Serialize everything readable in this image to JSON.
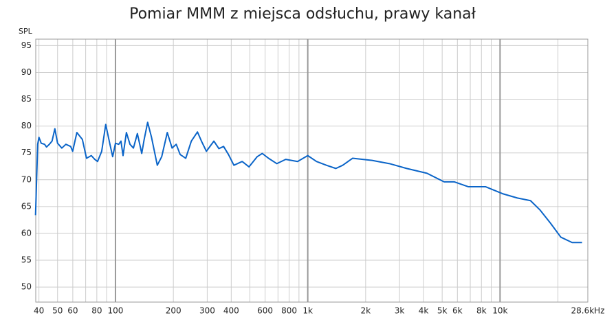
{
  "chart_data": {
    "type": "line",
    "title": "Pomiar MMM z miejsca odsłuchu, prawy kanał",
    "y_label": "SPL",
    "xscale": "log",
    "grid": true,
    "color": "#0a64c8",
    "xlim": [
      38.5,
      28600
    ],
    "ylim": [
      47.2,
      96.2
    ],
    "yticks": [
      50,
      55,
      60,
      65,
      70,
      75,
      80,
      85,
      90,
      95
    ],
    "xticks": [
      40,
      50,
      60,
      80,
      100,
      200,
      300,
      400,
      600,
      800,
      {
        "value": 1000,
        "label": "1k"
      },
      {
        "value": 2000,
        "label": "2k"
      },
      {
        "value": 3000,
        "label": "3k"
      },
      {
        "value": 4000,
        "label": "4k"
      },
      {
        "value": 5000,
        "label": "5k"
      },
      {
        "value": 6000,
        "label": "6k"
      },
      {
        "value": 8000,
        "label": "8k"
      },
      {
        "value": 10000,
        "label": "10k"
      },
      {
        "value": 28600,
        "label": "28.6kHz"
      }
    ],
    "xgrid_minor": [
      70,
      90,
      500,
      700,
      900,
      7000,
      9000,
      20000
    ],
    "x": [
      38.4,
      39.4,
      40,
      41.1,
      42.8,
      43.8,
      45.3,
      46.8,
      48.4,
      50,
      52.6,
      55.2,
      58.5,
      59.9,
      63,
      67.3,
      70.7,
      74.9,
      78,
      80.7,
      84.8,
      89,
      93.6,
      96.7,
      100,
      104,
      106.8,
      109.5,
      114,
      119,
      124,
      130,
      137,
      141,
      147,
      154,
      165,
      174,
      186,
      197,
      207,
      217,
      232,
      248,
      267,
      280,
      297,
      325,
      345,
      365,
      387,
      413,
      456,
      495,
      546,
      580,
      625,
      690,
      768,
      885,
      1000,
      1110,
      1250,
      1400,
      1520,
      1710,
      2160,
      2660,
      3270,
      4170,
      5120,
      5790,
      6830,
      8400,
      10300,
      12300,
      14400,
      16100,
      18300,
      20700,
      23700,
      26700
    ],
    "values": [
      63.4,
      76.6,
      77.9,
      76.8,
      76.6,
      76.1,
      76.6,
      77.2,
      79.5,
      76.8,
      75.9,
      76.6,
      76.2,
      75.3,
      78.8,
      77.5,
      74.0,
      74.5,
      73.8,
      73.4,
      75.3,
      80.3,
      76.6,
      74.3,
      76.8,
      76.6,
      77.2,
      74.5,
      78.8,
      76.6,
      75.9,
      78.6,
      74.9,
      77.5,
      80.7,
      77.9,
      72.7,
      74.3,
      78.8,
      75.9,
      76.6,
      74.7,
      74.0,
      77.2,
      78.9,
      77.2,
      75.3,
      77.2,
      75.8,
      76.2,
      74.7,
      72.7,
      73.4,
      72.4,
      74.3,
      74.9,
      74.0,
      73.0,
      73.8,
      73.4,
      74.5,
      73.4,
      72.7,
      72.1,
      72.7,
      74.0,
      73.6,
      73.0,
      72.1,
      71.2,
      69.6,
      69.6,
      68.7,
      68.7,
      67.4,
      66.6,
      66.1,
      64.4,
      61.9,
      59.3,
      58.3,
      58.3
    ]
  }
}
